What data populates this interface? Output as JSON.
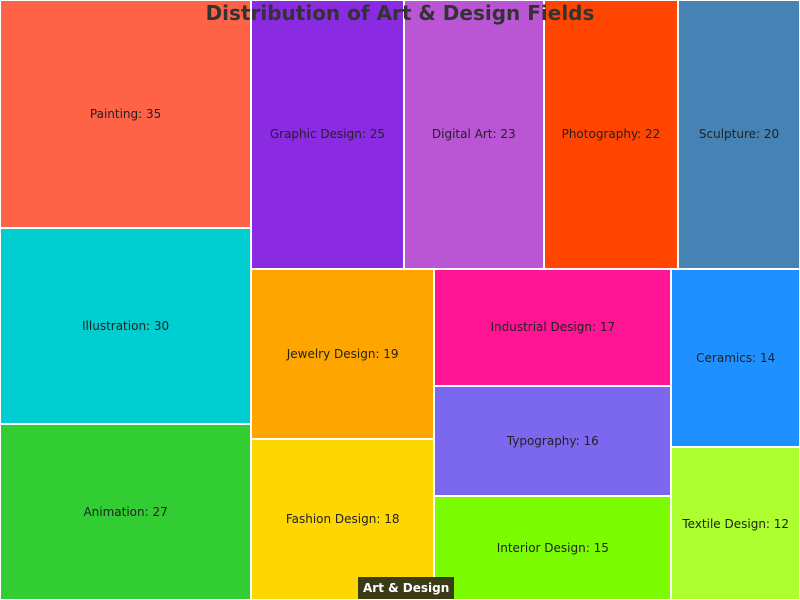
{
  "chart_data": {
    "type": "treemap",
    "title": "Distribution of Art & Design Fields",
    "root": "Art & Design",
    "label_separator": ": ",
    "items": [
      {
        "name": "Painting",
        "value": 35,
        "color": "#FF6347"
      },
      {
        "name": "Illustration",
        "value": 30,
        "color": "#00CED1"
      },
      {
        "name": "Animation",
        "value": 27,
        "color": "#32CD32"
      },
      {
        "name": "Graphic Design",
        "value": 25,
        "color": "#8A2BE2"
      },
      {
        "name": "Digital Art",
        "value": 23,
        "color": "#BA55D3"
      },
      {
        "name": "Photography",
        "value": 22,
        "color": "#FF4500"
      },
      {
        "name": "Sculpture",
        "value": 20,
        "color": "#4682B4"
      },
      {
        "name": "Jewelry Design",
        "value": 19,
        "color": "#FFA500"
      },
      {
        "name": "Fashion Design",
        "value": 18,
        "color": "#FFD700"
      },
      {
        "name": "Industrial Design",
        "value": 17,
        "color": "#FF1493"
      },
      {
        "name": "Typography",
        "value": 16,
        "color": "#7B68EE"
      },
      {
        "name": "Interior Design",
        "value": 15,
        "color": "#7CFC00"
      },
      {
        "name": "Ceramics",
        "value": 14,
        "color": "#1E90FF"
      },
      {
        "name": "Textile Design",
        "value": 12,
        "color": "#ADFF2F"
      }
    ]
  }
}
